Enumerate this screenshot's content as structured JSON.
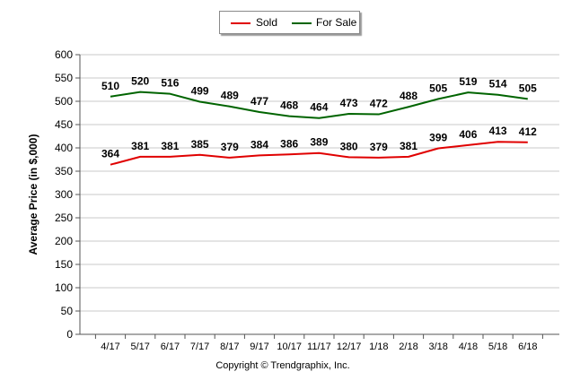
{
  "chart_data": {
    "type": "line",
    "categories": [
      "4/17",
      "5/17",
      "6/17",
      "7/17",
      "8/17",
      "9/17",
      "10/17",
      "11/17",
      "12/17",
      "1/18",
      "2/18",
      "3/18",
      "4/18",
      "5/18",
      "6/18"
    ],
    "series": [
      {
        "name": "Sold",
        "color": "#e00000",
        "values": [
          364,
          381,
          381,
          385,
          379,
          384,
          386,
          389,
          380,
          379,
          381,
          399,
          406,
          413,
          412
        ]
      },
      {
        "name": "For Sale",
        "color": "#006400",
        "values": [
          510,
          520,
          516,
          499,
          489,
          477,
          468,
          464,
          473,
          472,
          488,
          505,
          519,
          514,
          505
        ]
      }
    ],
    "ylabel": "Average Price (in $,000)",
    "xlabel": "Copyright © Trendgraphix, Inc.",
    "ylim": [
      0,
      600
    ],
    "yticks": [
      0,
      50,
      100,
      150,
      200,
      250,
      300,
      350,
      400,
      450,
      500,
      550,
      600
    ],
    "grid": true,
    "legend_position": "top-center"
  }
}
